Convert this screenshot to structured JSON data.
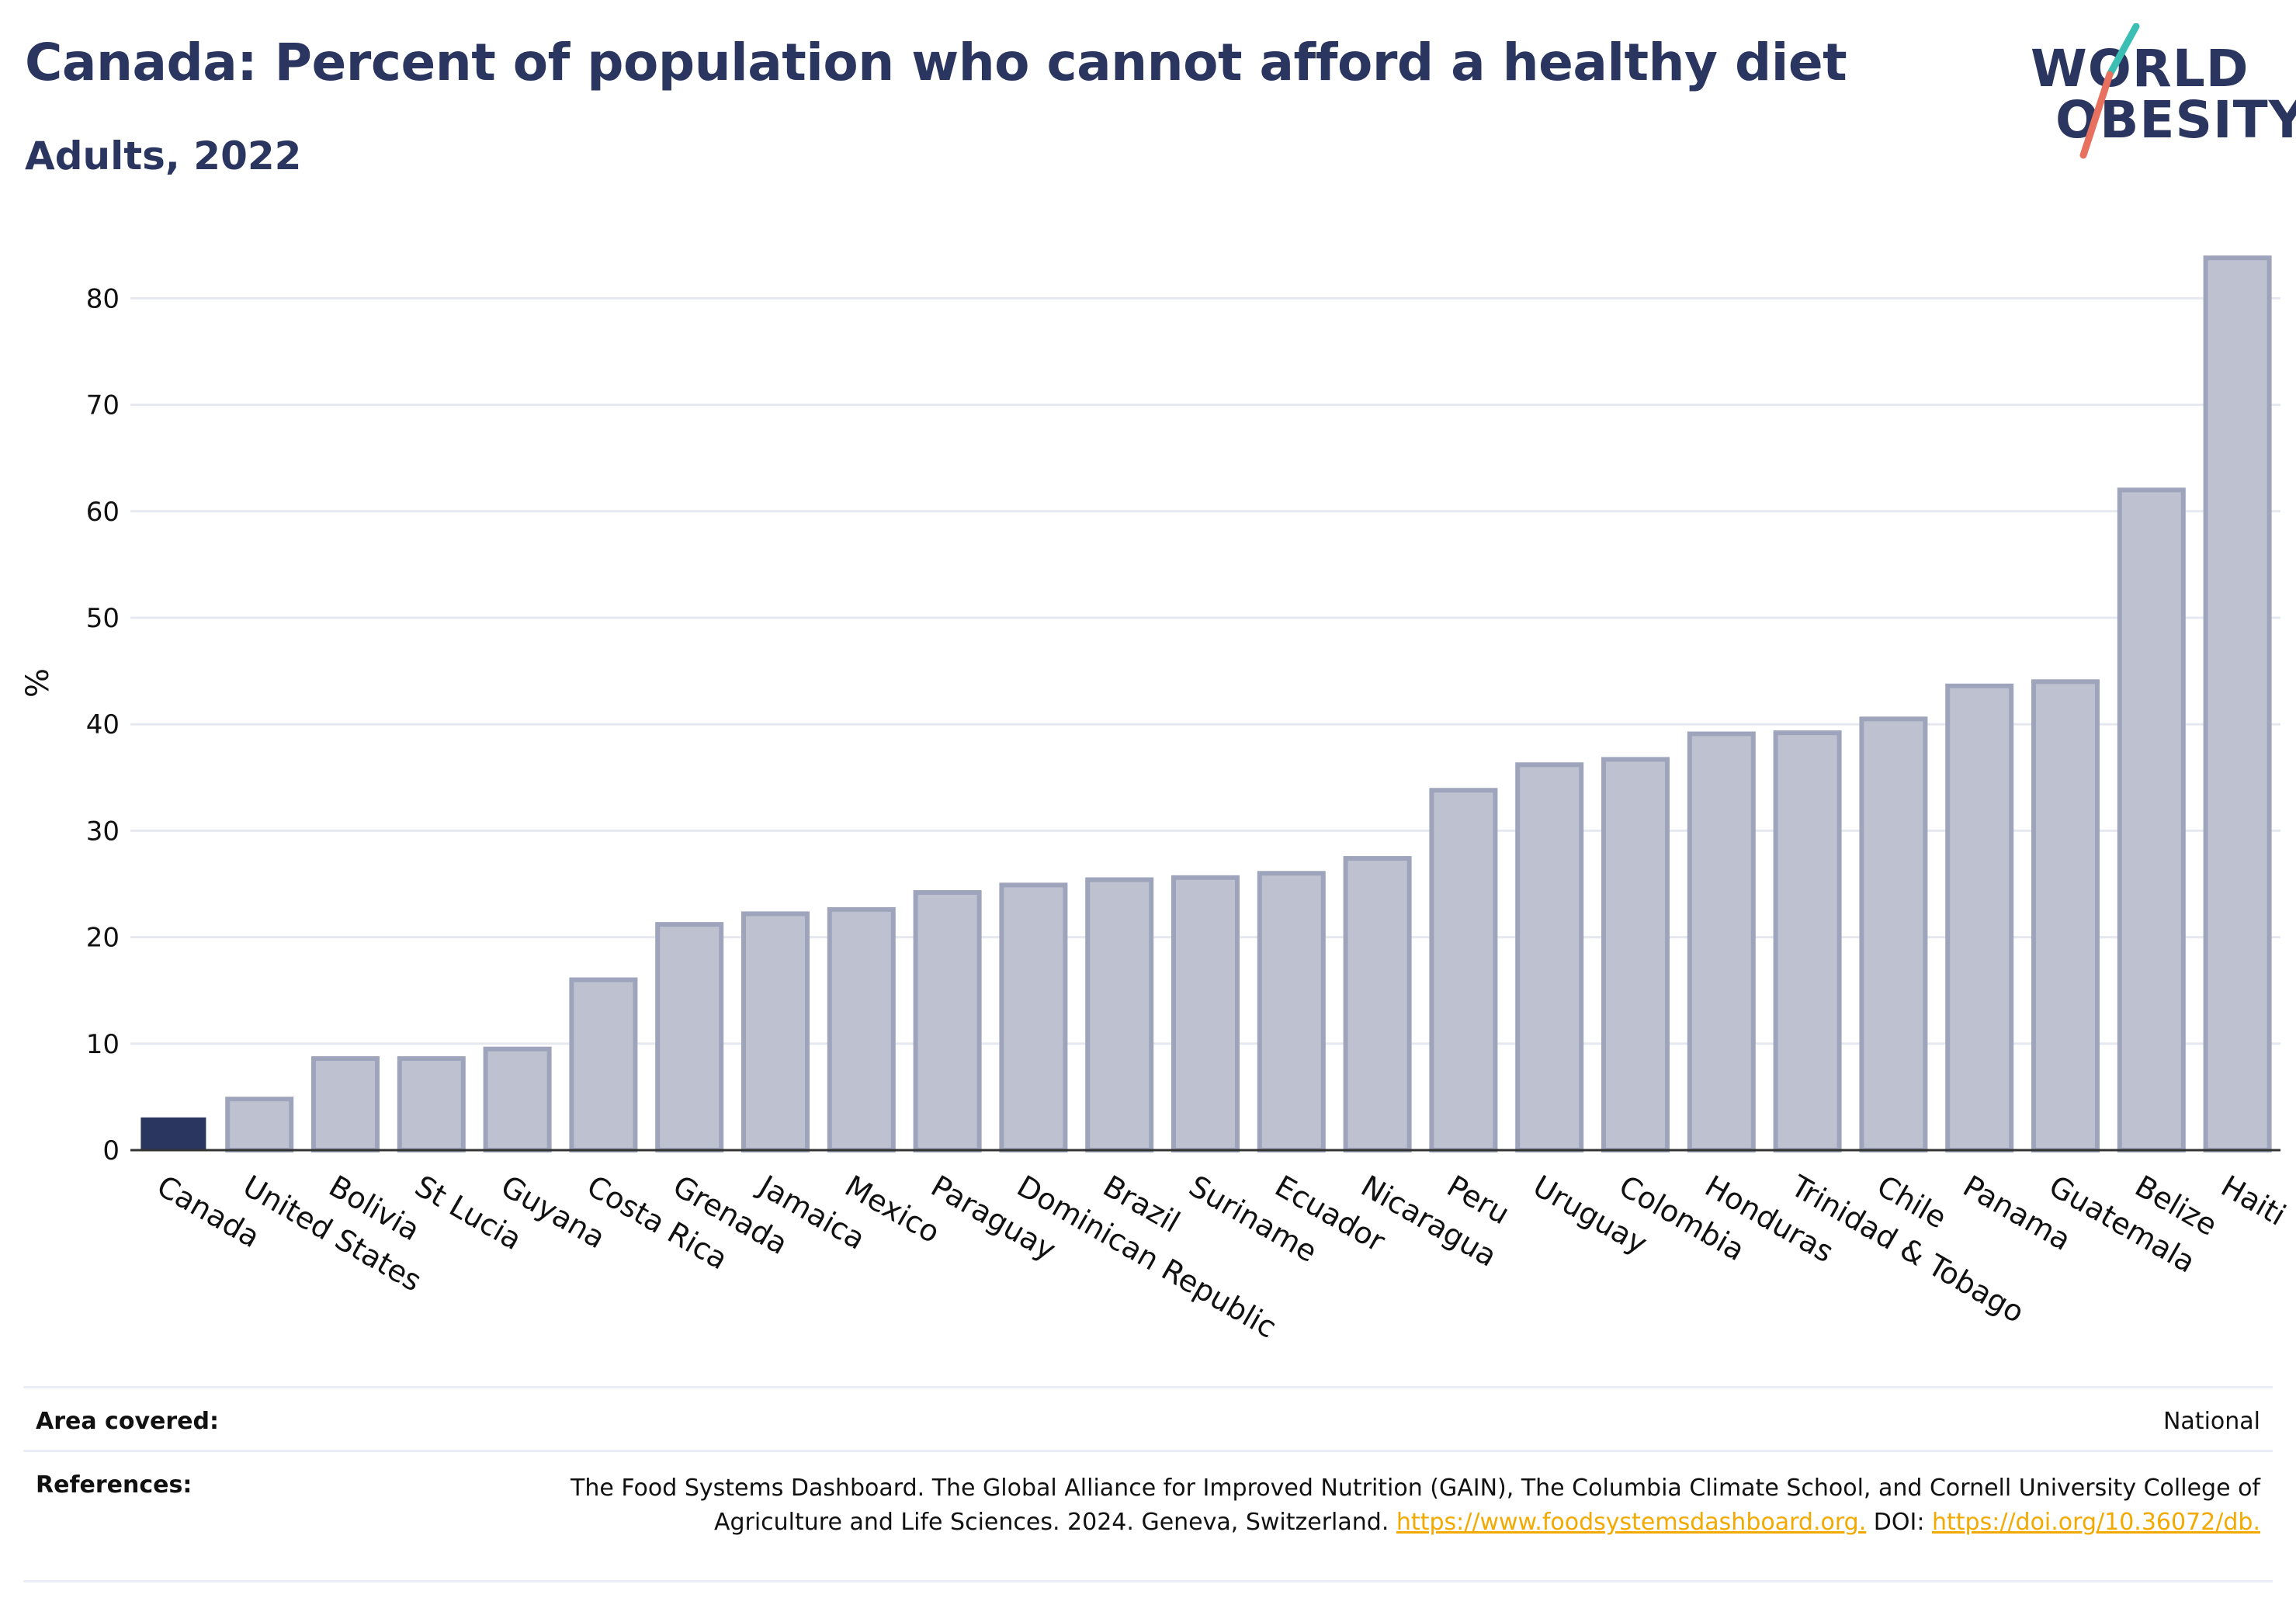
{
  "header": {
    "title": "Canada: Percent of population who cannot afford a healthy diet",
    "subtitle": "Adults, 2022"
  },
  "logo": {
    "line1": "WORLD",
    "line2": "OBESITY",
    "accent_colors": [
      "#3bbfb5",
      "#e8705e"
    ]
  },
  "colors": {
    "highlight_bar": "#2b3660",
    "other_bar_fill": "#bec2d0",
    "other_bar_stroke": "#9ea4bb",
    "axis": "#333333",
    "grid": "#e6e8ef",
    "link": "#f2a900"
  },
  "chart_data": {
    "type": "bar",
    "title": "Canada: Percent of population who cannot afford a healthy diet",
    "subtitle": "Adults, 2022",
    "xlabel": "",
    "ylabel": "%",
    "ylim": [
      0,
      85
    ],
    "yticks": [
      0,
      10,
      20,
      30,
      40,
      50,
      60,
      70,
      80
    ],
    "grid": true,
    "highlight": "Canada",
    "categories": [
      "Canada",
      "United States",
      "Bolivia",
      "St Lucia",
      "Guyana",
      "Costa Rica",
      "Grenada",
      "Jamaica",
      "Mexico",
      "Paraguay",
      "Dominican Republic",
      "Brazil",
      "Suriname",
      "Ecuador",
      "Nicaragua",
      "Peru",
      "Uruguay",
      "Colombia",
      "Honduras",
      "Trinidad & Tobago",
      "Chile",
      "Panama",
      "Guatemala",
      "Belize",
      "Haiti"
    ],
    "values": [
      3.0,
      4.8,
      8.6,
      8.6,
      9.5,
      16.0,
      21.2,
      22.2,
      22.6,
      24.2,
      24.9,
      25.4,
      25.6,
      26.0,
      27.4,
      33.8,
      36.2,
      36.7,
      39.1,
      39.2,
      40.5,
      43.6,
      44.0,
      62.0,
      83.8
    ]
  },
  "footer": {
    "area_label": "Area covered:",
    "area_value": "National",
    "references_label": "References:",
    "references_text": "The Food Systems Dashboard. The Global Alliance for Improved Nutrition (GAIN), The Columbia Climate School, and Cornell University College of Agriculture and Life Sciences. 2024. Geneva, Switzerland.",
    "references_link1": "https://www.foodsystemsdashboard.org.",
    "references_doi_label": "DOI:",
    "references_link2": "https://doi.org/10.36072/db."
  }
}
